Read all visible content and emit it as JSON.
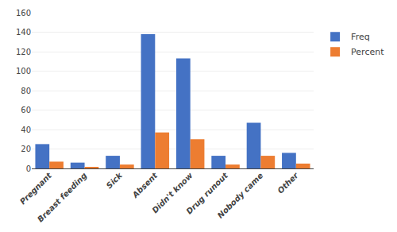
{
  "chart_data": {
    "type": "bar",
    "categories": [
      "Pregnant",
      "Breast feeding",
      "Sick",
      "Absent",
      "Didn't know",
      "Drug runout",
      "Nobody came",
      "Other"
    ],
    "series": [
      {
        "name": "Freq",
        "color": "#4472C4",
        "values": [
          25,
          6,
          13,
          138,
          113,
          13,
          47,
          16
        ]
      },
      {
        "name": "Percent",
        "color": "#ED7D31",
        "values": [
          7,
          1.5,
          4,
          37,
          30,
          4,
          13,
          5
        ]
      }
    ],
    "ylim": [
      0,
      160
    ],
    "yticks": [
      0,
      20,
      40,
      60,
      80,
      100,
      120,
      140,
      160
    ],
    "grid": true,
    "legend": "right"
  }
}
